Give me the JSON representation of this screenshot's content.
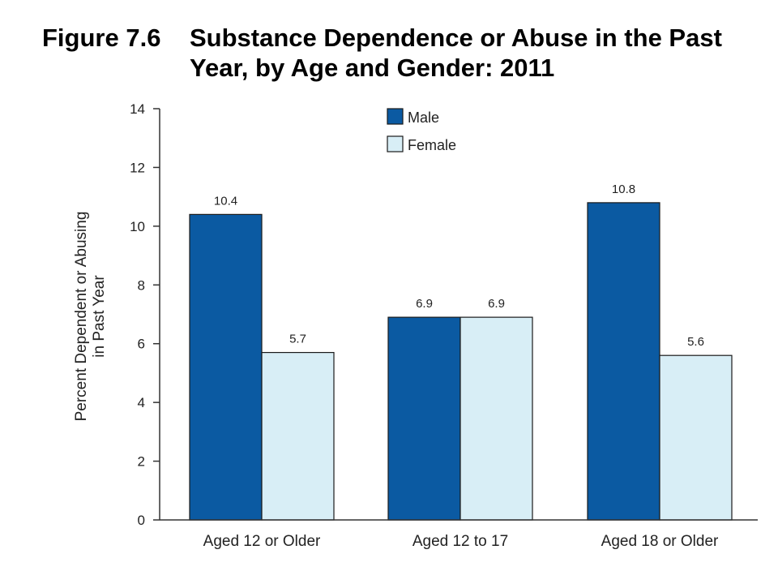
{
  "figure": {
    "label": "Figure 7.6",
    "title": "Substance Dependence or Abuse in the Past Year, by Age and Gender: 2011"
  },
  "chart_data": {
    "type": "bar",
    "title": "Substance Dependence or Abuse in the Past Year, by Age and Gender: 2011",
    "categories": [
      "Aged 12 or Older",
      "Aged 12 to 17",
      "Aged 18 or Older"
    ],
    "series": [
      {
        "name": "Male",
        "values": [
          10.4,
          6.9,
          10.8
        ],
        "labels": [
          "10.4",
          "6.9",
          "10.8"
        ],
        "color": "#0b5aa2"
      },
      {
        "name": "Female",
        "values": [
          5.7,
          6.9,
          5.6
        ],
        "labels": [
          "5.7",
          "6.9",
          "5.6"
        ],
        "color": "#d8eef6"
      }
    ],
    "xlabel": "",
    "ylabel": [
      "Percent Dependent or Abusing",
      "in Past Year"
    ],
    "ylim": [
      0,
      14
    ],
    "yticks": [
      0,
      2,
      4,
      6,
      8,
      10,
      12,
      14
    ],
    "grid": false,
    "legend_position": "top-center"
  }
}
